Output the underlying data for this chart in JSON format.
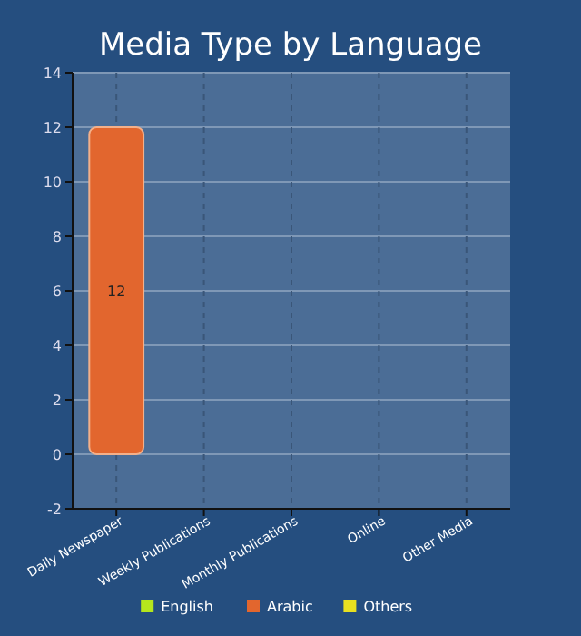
{
  "chart_data": {
    "type": "bar",
    "title": "Media Type by Language",
    "categories": [
      "Daily Newspaper",
      "Weekly Publications",
      "Monthly Publications",
      "Online",
      "Other Media"
    ],
    "series": [
      {
        "name": "English",
        "color": "#b5e61d",
        "values": [
          null,
          null,
          null,
          null,
          null
        ]
      },
      {
        "name": "Arabic",
        "color": "#e2662e",
        "values": [
          12,
          null,
          null,
          null,
          null
        ]
      },
      {
        "name": "Others",
        "color": "#e8e020",
        "values": [
          null,
          null,
          null,
          null,
          null
        ]
      }
    ],
    "ylim": [
      -2,
      14
    ],
    "yticks": [
      -2,
      0,
      2,
      4,
      6,
      8,
      10,
      12,
      14
    ],
    "grid": true,
    "legend": "bottom",
    "data_labels": true
  }
}
